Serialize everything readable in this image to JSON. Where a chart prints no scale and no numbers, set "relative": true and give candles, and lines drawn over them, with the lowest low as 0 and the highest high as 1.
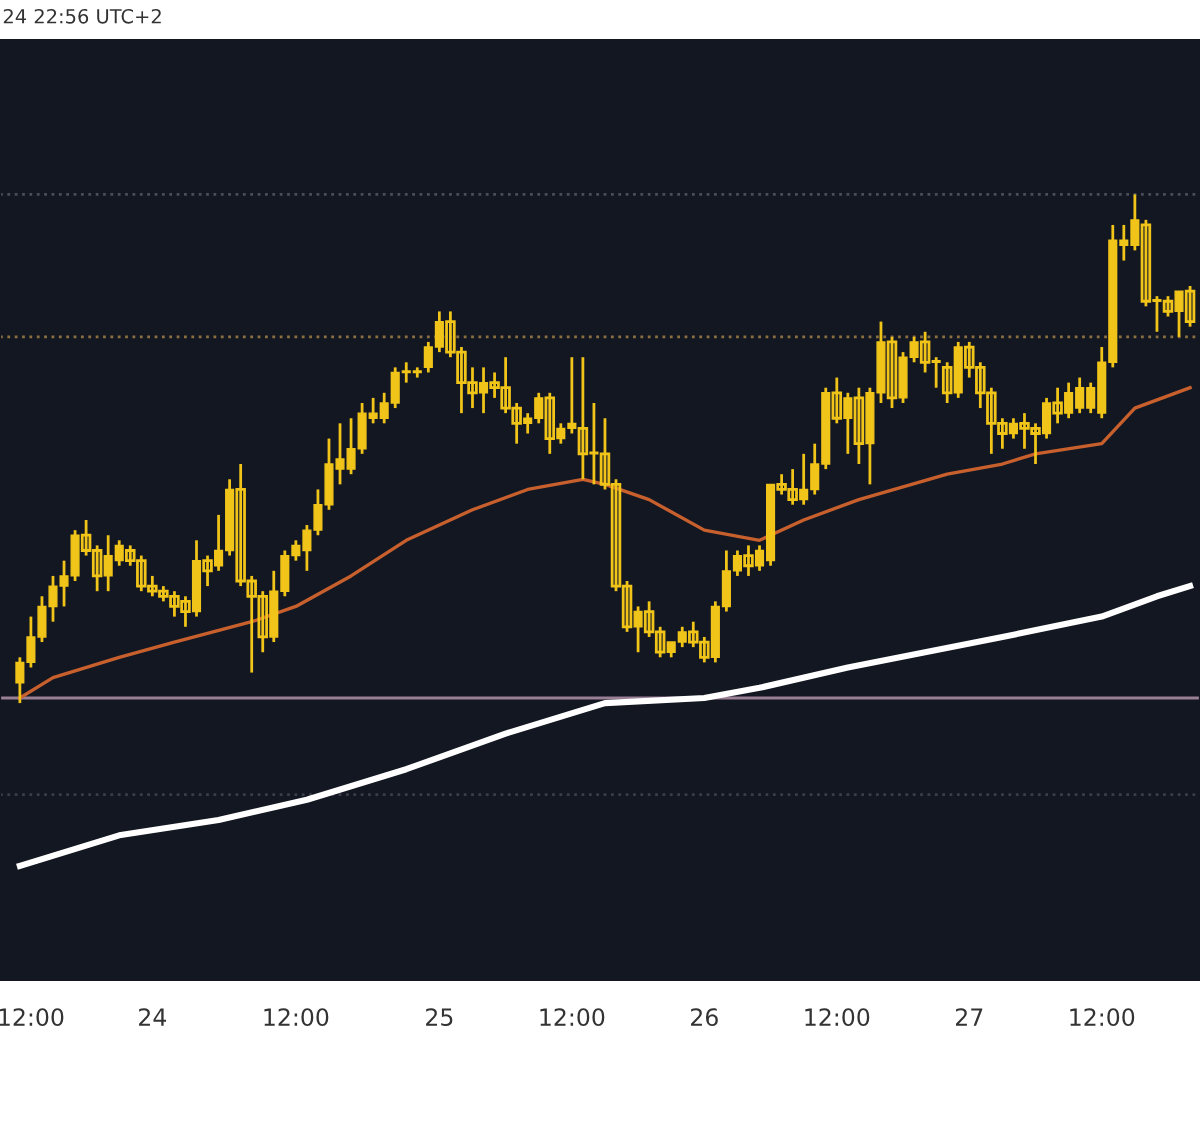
{
  "chart_data": {
    "type": "candlestick",
    "relative": true,
    "color": "#f0c419",
    "annotations": [
      "24 22:56 UTC+2"
    ],
    "categories": [
      null,
      "12:00",
      null,
      null,
      null,
      null,
      null,
      null,
      null,
      null,
      null,
      null,
      "24",
      null,
      null,
      null,
      null,
      null,
      null,
      null,
      null,
      null,
      null,
      null,
      null,
      "12:00",
      null,
      null,
      null,
      null,
      null,
      null,
      null,
      null,
      null,
      null,
      null,
      null,
      "25",
      null,
      null,
      null,
      null,
      null,
      null,
      null,
      null,
      null,
      null,
      null,
      "12:00",
      null,
      null,
      null,
      null,
      null,
      null,
      null,
      null,
      null,
      null,
      null,
      "26",
      null,
      null,
      null,
      null,
      null,
      null,
      null,
      null,
      null,
      null,
      null,
      "12:00",
      null,
      null,
      null,
      null,
      null,
      null,
      null,
      null,
      null,
      null,
      null,
      "27",
      null,
      null,
      null,
      null,
      null,
      null,
      null,
      null,
      null,
      null,
      null,
      "12:00",
      null,
      null,
      null,
      null,
      null,
      null,
      null,
      null
    ],
    "ohlc": [
      [
        0.04,
        0.09,
        0,
        0.08
      ],
      [
        0.08,
        0.17,
        0.07,
        0.13
      ],
      [
        0.13,
        0.21,
        0.12,
        0.19
      ],
      [
        0.19,
        0.25,
        0.16,
        0.23
      ],
      [
        0.23,
        0.28,
        0.19,
        0.25
      ],
      [
        0.25,
        0.34,
        0.24,
        0.33
      ],
      [
        0.33,
        0.36,
        0.29,
        0.3
      ],
      [
        0.3,
        0.31,
        0.22,
        0.25
      ],
      [
        0.25,
        0.33,
        0.22,
        0.29
      ],
      [
        0.28,
        0.32,
        0.27,
        0.31
      ],
      [
        0.3,
        0.31,
        0.27,
        0.28
      ],
      [
        0.28,
        0.29,
        0.22,
        0.23
      ],
      [
        0.23,
        0.25,
        0.21,
        0.22
      ],
      [
        0.22,
        0.23,
        0.2,
        0.21
      ],
      [
        0.21,
        0.22,
        0.17,
        0.19
      ],
      [
        0.2,
        0.21,
        0.15,
        0.18
      ],
      [
        0.18,
        0.32,
        0.17,
        0.28
      ],
      [
        0.28,
        0.29,
        0.23,
        0.26
      ],
      [
        0.27,
        0.37,
        0.26,
        0.3
      ],
      [
        0.3,
        0.44,
        0.29,
        0.42
      ],
      [
        0.42,
        0.47,
        0.23,
        0.24
      ],
      [
        0.24,
        0.25,
        0.06,
        0.21
      ],
      [
        0.21,
        0.22,
        0.1,
        0.13
      ],
      [
        0.13,
        0.26,
        0.12,
        0.22
      ],
      [
        0.22,
        0.3,
        0.21,
        0.29
      ],
      [
        0.29,
        0.32,
        0.28,
        0.31
      ],
      [
        0.3,
        0.35,
        0.26,
        0.34
      ],
      [
        0.34,
        0.42,
        0.33,
        0.39
      ],
      [
        0.39,
        0.52,
        0.38,
        0.47
      ],
      [
        0.46,
        0.55,
        0.43,
        0.48
      ],
      [
        0.46,
        0.56,
        0.45,
        0.5
      ],
      [
        0.5,
        0.59,
        0.49,
        0.57
      ],
      [
        0.56,
        0.6,
        0.55,
        0.57
      ],
      [
        0.56,
        0.61,
        0.55,
        0.59
      ],
      [
        0.59,
        0.66,
        0.58,
        0.65
      ],
      [
        0.65,
        0.67,
        0.63,
        0.65
      ],
      [
        0.65,
        0.66,
        0.64,
        0.65
      ],
      [
        0.66,
        0.71,
        0.65,
        0.7
      ],
      [
        0.7,
        0.77,
        0.69,
        0.75
      ],
      [
        0.75,
        0.77,
        0.68,
        0.69
      ],
      [
        0.69,
        0.7,
        0.57,
        0.63
      ],
      [
        0.63,
        0.66,
        0.58,
        0.61
      ],
      [
        0.61,
        0.66,
        0.57,
        0.63
      ],
      [
        0.63,
        0.65,
        0.6,
        0.62
      ],
      [
        0.62,
        0.68,
        0.57,
        0.58
      ],
      [
        0.58,
        0.59,
        0.51,
        0.55
      ],
      [
        0.55,
        0.57,
        0.53,
        0.56
      ],
      [
        0.56,
        0.61,
        0.55,
        0.6
      ],
      [
        0.6,
        0.61,
        0.49,
        0.52
      ],
      [
        0.52,
        0.55,
        0.51,
        0.54
      ],
      [
        0.54,
        0.68,
        0.53,
        0.55
      ],
      [
        0.54,
        0.68,
        0.44,
        0.49
      ],
      [
        0.49,
        0.59,
        0.43,
        0.49
      ],
      [
        0.49,
        0.56,
        0.42,
        0.43
      ],
      [
        0.43,
        0.44,
        0.22,
        0.23
      ],
      [
        0.23,
        0.24,
        0.14,
        0.15
      ],
      [
        0.15,
        0.19,
        0.1,
        0.18
      ],
      [
        0.18,
        0.2,
        0.13,
        0.14
      ],
      [
        0.14,
        0.15,
        0.09,
        0.1
      ],
      [
        0.1,
        0.12,
        0.09,
        0.12
      ],
      [
        0.12,
        0.15,
        0.11,
        0.14
      ],
      [
        0.14,
        0.16,
        0.11,
        0.12
      ],
      [
        0.12,
        0.13,
        0.08,
        0.09
      ],
      [
        0.09,
        0.2,
        0.08,
        0.19
      ],
      [
        0.19,
        0.3,
        0.18,
        0.26
      ],
      [
        0.26,
        0.3,
        0.25,
        0.29
      ],
      [
        0.29,
        0.31,
        0.25,
        0.27
      ],
      [
        0.27,
        0.31,
        0.26,
        0.3
      ],
      [
        0.28,
        0.43,
        0.27,
        0.43
      ],
      [
        0.43,
        0.45,
        0.41,
        0.42
      ],
      [
        0.42,
        0.46,
        0.39,
        0.4
      ],
      [
        0.4,
        0.49,
        0.39,
        0.42
      ],
      [
        0.42,
        0.51,
        0.41,
        0.47
      ],
      [
        0.47,
        0.62,
        0.46,
        0.61
      ],
      [
        0.61,
        0.64,
        0.55,
        0.56
      ],
      [
        0.56,
        0.61,
        0.49,
        0.6
      ],
      [
        0.6,
        0.62,
        0.47,
        0.51
      ],
      [
        0.51,
        0.62,
        0.43,
        0.61
      ],
      [
        0.61,
        0.75,
        0.59,
        0.71
      ],
      [
        0.71,
        0.72,
        0.58,
        0.6
      ],
      [
        0.6,
        0.69,
        0.59,
        0.68
      ],
      [
        0.68,
        0.72,
        0.67,
        0.71
      ],
      [
        0.71,
        0.73,
        0.65,
        0.67
      ],
      [
        0.67,
        0.68,
        0.62,
        0.67
      ],
      [
        0.66,
        0.67,
        0.59,
        0.61
      ],
      [
        0.61,
        0.71,
        0.6,
        0.7
      ],
      [
        0.7,
        0.71,
        0.64,
        0.66
      ],
      [
        0.66,
        0.67,
        0.58,
        0.61
      ],
      [
        0.61,
        0.62,
        0.49,
        0.55
      ],
      [
        0.55,
        0.56,
        0.5,
        0.53
      ],
      [
        0.53,
        0.56,
        0.52,
        0.55
      ],
      [
        0.55,
        0.57,
        0.5,
        0.54
      ],
      [
        0.54,
        0.55,
        0.47,
        0.53
      ],
      [
        0.53,
        0.6,
        0.52,
        0.59
      ],
      [
        0.59,
        0.62,
        0.55,
        0.57
      ],
      [
        0.57,
        0.63,
        0.56,
        0.61
      ],
      [
        0.58,
        0.64,
        0.57,
        0.62
      ],
      [
        0.58,
        0.63,
        0.57,
        0.62
      ],
      [
        0.57,
        0.7,
        0.56,
        0.67
      ],
      [
        0.67,
        0.94,
        0.66,
        0.91
      ],
      [
        0.9,
        0.94,
        0.87,
        0.91
      ],
      [
        0.9,
        1.0,
        0.89,
        0.95
      ],
      [
        0.94,
        0.95,
        0.78,
        0.79
      ],
      [
        0.79,
        0.8,
        0.73,
        0.79
      ],
      [
        0.79,
        0.8,
        0.76,
        0.77
      ],
      [
        0.77,
        0.81,
        0.72,
        0.81
      ],
      [
        0.81,
        0.82,
        0.74,
        0.75
      ]
    ],
    "series": [
      {
        "type": "line",
        "color": "#c8602e",
        "values": [
          0.01,
          null,
          null,
          0.05,
          null,
          null,
          null,
          null,
          null,
          0.09,
          null,
          null,
          null,
          null,
          0.12,
          null,
          null,
          null,
          null,
          null,
          null,
          0.16,
          null,
          null,
          null,
          0.19,
          null,
          null,
          null,
          null,
          0.25,
          null,
          null,
          null,
          null,
          0.32,
          null,
          null,
          null,
          null,
          null,
          0.38,
          null,
          null,
          null,
          null,
          0.42,
          null,
          null,
          null,
          null,
          0.44,
          null,
          0.43,
          null,
          null,
          null,
          0.4,
          null,
          null,
          null,
          null,
          0.34,
          null,
          null,
          null,
          null,
          0.32,
          null,
          null,
          null,
          0.36,
          null,
          null,
          null,
          null,
          0.4,
          null,
          null,
          null,
          null,
          null,
          null,
          null,
          0.45,
          null,
          null,
          null,
          null,
          0.47,
          null,
          null,
          0.49,
          null,
          null,
          null,
          null,
          null,
          0.51,
          null,
          null,
          0.58,
          null,
          null,
          null,
          null,
          0.62
        ]
      },
      {
        "type": "line",
        "color": "#ffffff",
        "values": [
          -0.32,
          null,
          null,
          null,
          null,
          null,
          null,
          null,
          null,
          -0.26,
          null,
          null,
          null,
          null,
          null,
          null,
          null,
          null,
          -0.23,
          null,
          null,
          null,
          null,
          null,
          null,
          null,
          -0.19,
          null,
          null,
          null,
          null,
          null,
          null,
          null,
          null,
          -0.13,
          null,
          null,
          null,
          null,
          null,
          null,
          null,
          null,
          -0.06,
          null,
          null,
          null,
          null,
          null,
          null,
          null,
          null,
          0.0,
          null,
          null,
          null,
          null,
          null,
          null,
          null,
          null,
          0.01,
          null,
          null,
          null,
          null,
          0.03,
          null,
          null,
          null,
          null,
          null,
          null,
          null,
          0.07,
          null,
          null,
          null,
          null,
          null,
          null,
          0.1,
          null,
          null,
          null,
          null,
          null,
          null,
          0.13,
          null,
          null,
          null,
          null,
          null,
          null,
          null,
          null,
          0.17,
          null,
          null,
          null,
          null,
          0.21,
          null,
          null,
          0.23
        ]
      }
    ],
    "ref_lines": [
      {
        "axis": "y",
        "value": 1.0,
        "label": null,
        "color": "#4a4e5a",
        "line_style": "dotted"
      },
      {
        "axis": "y",
        "value": 0.72,
        "label": null,
        "color": "#8a7040",
        "line_style": "dotted"
      },
      {
        "axis": "y",
        "value": 0.01,
        "label": null,
        "color": "#9a7f95",
        "line_style": "solid"
      },
      {
        "axis": "y",
        "value": -0.18,
        "label": null,
        "color": "#3a3e4a",
        "line_style": "dotted"
      }
    ],
    "grid": false,
    "legend": false
  }
}
